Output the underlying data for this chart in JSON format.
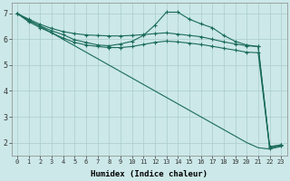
{
  "xlabel": "Humidex (Indice chaleur)",
  "background_color": "#cce8e8",
  "grid_color": "#aacccc",
  "line_color": "#1a6b5a",
  "xlim": [
    -0.5,
    23.5
  ],
  "ylim": [
    1.5,
    7.4
  ],
  "yticks": [
    2,
    3,
    4,
    5,
    6,
    7
  ],
  "xticks": [
    0,
    1,
    2,
    3,
    4,
    5,
    6,
    7,
    8,
    9,
    10,
    11,
    12,
    13,
    14,
    15,
    16,
    17,
    18,
    19,
    20,
    21,
    22,
    23
  ],
  "series": [
    {
      "x": [
        0,
        1,
        2,
        3,
        4,
        5,
        6,
        7,
        8,
        9,
        10,
        11,
        12,
        13,
        14,
        15,
        16,
        17,
        18,
        19,
        20,
        21,
        22,
        23
      ],
      "y": [
        7.0,
        6.75,
        6.5,
        6.25,
        6.0,
        5.75,
        5.5,
        5.25,
        5.0,
        4.75,
        4.5,
        4.25,
        4.0,
        3.75,
        3.5,
        3.25,
        3.0,
        2.75,
        2.5,
        2.25,
        2.0,
        1.8,
        1.75,
        1.85
      ],
      "marker": null
    },
    {
      "x": [
        0,
        1,
        2,
        3,
        4,
        5,
        6,
        7,
        8,
        9,
        10,
        11,
        12,
        13,
        14,
        15,
        16,
        17,
        18,
        19,
        20,
        21,
        22,
        23
      ],
      "y": [
        7.0,
        6.78,
        6.58,
        6.42,
        6.3,
        6.22,
        6.17,
        6.15,
        6.13,
        6.13,
        6.15,
        6.18,
        6.22,
        6.25,
        6.2,
        6.15,
        6.1,
        6.0,
        5.9,
        5.82,
        5.75,
        5.72,
        1.85,
        1.9
      ],
      "marker": "+"
    },
    {
      "x": [
        0,
        1,
        2,
        3,
        4,
        5,
        6,
        7,
        8,
        9,
        10,
        11,
        12,
        13,
        14,
        15,
        16,
        17,
        18,
        19,
        20,
        21,
        22,
        23
      ],
      "y": [
        7.0,
        6.68,
        6.45,
        6.25,
        6.05,
        5.88,
        5.78,
        5.72,
        5.68,
        5.68,
        5.72,
        5.8,
        5.88,
        5.93,
        5.9,
        5.85,
        5.8,
        5.73,
        5.65,
        5.58,
        5.5,
        5.48,
        1.78,
        1.88
      ],
      "marker": "+"
    },
    {
      "x": [
        0,
        1,
        2,
        3,
        4,
        5,
        6,
        7,
        8,
        9,
        10,
        11,
        12,
        13,
        14,
        15,
        16,
        17,
        18,
        19,
        20,
        21,
        22,
        23
      ],
      "y": [
        7.0,
        6.72,
        6.52,
        6.33,
        6.18,
        5.98,
        5.88,
        5.78,
        5.75,
        5.82,
        5.92,
        6.15,
        6.55,
        7.05,
        7.05,
        6.78,
        6.6,
        6.45,
        6.15,
        5.92,
        5.78,
        5.72,
        1.82,
        1.92
      ],
      "marker": "+"
    }
  ]
}
